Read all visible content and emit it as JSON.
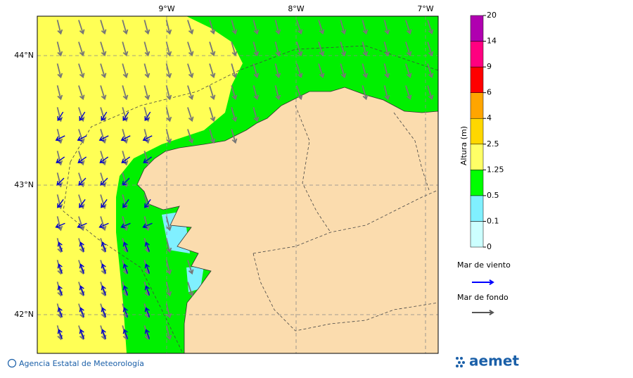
{
  "map": {
    "lon_labels": [
      "9°W",
      "8°W",
      "7°W"
    ],
    "lat_labels": [
      "44°N",
      "43°N",
      "42°N"
    ]
  },
  "colorbar": {
    "title": "Altura (m)",
    "ticks": [
      0,
      0.1,
      0.5,
      1.25,
      2.5,
      4,
      6,
      9,
      14,
      20
    ],
    "colors": [
      "#ccffff",
      "#80f0ff",
      "#00ff00",
      "#ffff66",
      "#ffd700",
      "#ffa500",
      "#ff0000",
      "#ff0080",
      "#b000b0"
    ]
  },
  "legend": {
    "items": [
      {
        "label": "Mar de viento",
        "color": "#0000ff"
      },
      {
        "label": "Mar de fondo",
        "color": "#555555"
      }
    ]
  },
  "footer": {
    "credit": "Agencia Estatal de Meteorología",
    "logo": "aemet"
  }
}
